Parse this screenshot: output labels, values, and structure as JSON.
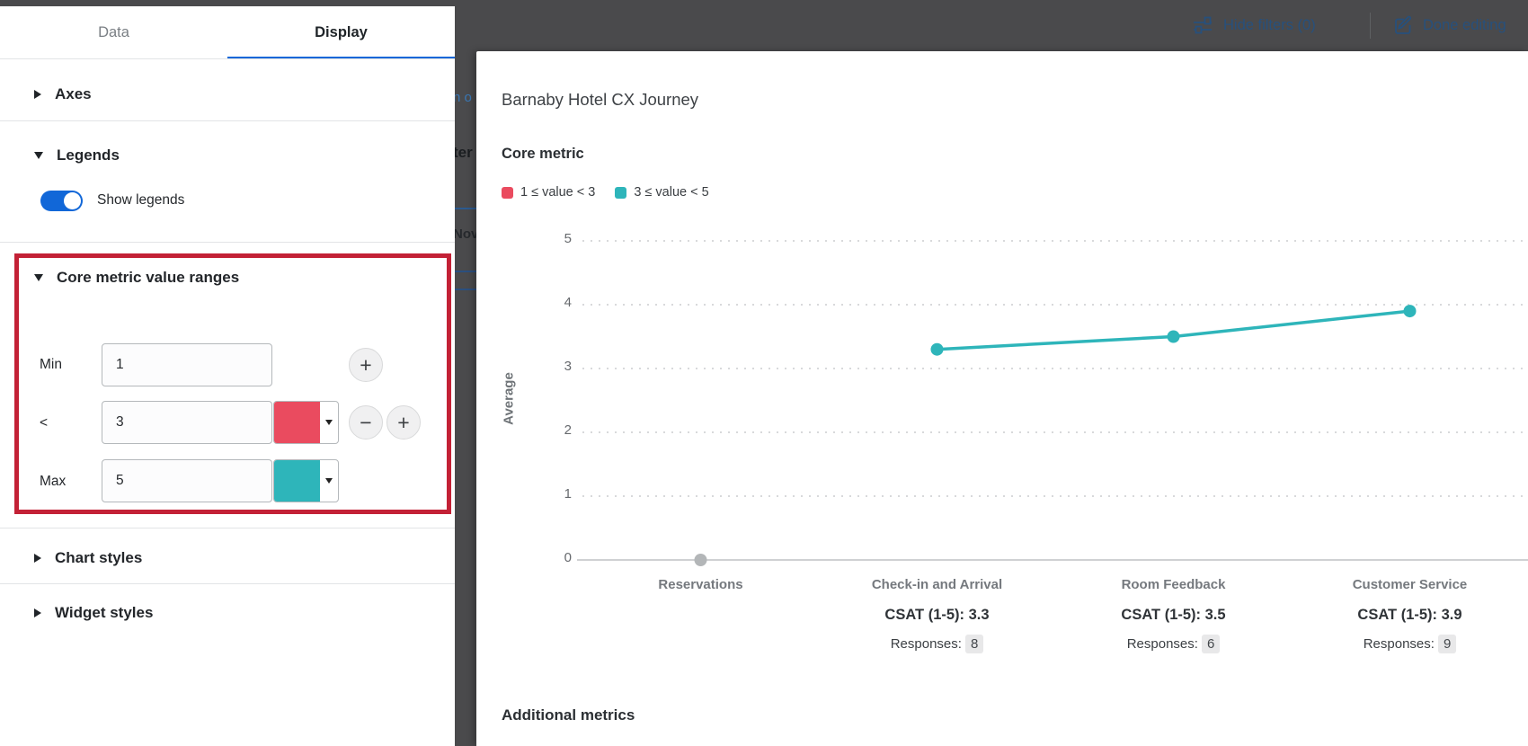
{
  "colors": {
    "accent_blue": "#1167d8",
    "range_red": "#ea4b5f",
    "range_teal": "#2eb5ba",
    "highlight_border": "#c32136",
    "overlay_dark": "#4a4a4c",
    "toolbar_text": "#27507c"
  },
  "glyphs": {
    "plus": "+",
    "minus": "−"
  },
  "toolbar": {
    "hide_filters_label": "Hide filters (0)",
    "done_editing_label": "Done editing"
  },
  "panel": {
    "tabs": [
      {
        "label": "Data",
        "active": false
      },
      {
        "label": "Display",
        "active": true
      }
    ],
    "axes": {
      "label": "Axes",
      "collapsed": true
    },
    "legends": {
      "label": "Legends",
      "collapsed": false,
      "toggle_label": "Show legends",
      "toggle_on": true
    },
    "core_ranges": {
      "label": "Core metric value ranges",
      "collapsed": false,
      "rows": [
        {
          "label": "Min",
          "value": "1",
          "color": null
        },
        {
          "label": "<",
          "value": "3",
          "color": "#ea4b5f"
        },
        {
          "label": "Max",
          "value": "5",
          "color": "#2eb5ba"
        }
      ]
    },
    "chart_styles": {
      "label": "Chart styles",
      "collapsed": true
    },
    "widget_styles": {
      "label": "Widget styles",
      "collapsed": true
    }
  },
  "occluded_fragments": {
    "fragment_1": "n o",
    "fragment_2": "ter",
    "fragment_3": "Nov"
  },
  "widget": {
    "title": "Barnaby Hotel CX Journey",
    "core_metric_label": "Core metric",
    "legend": [
      {
        "label": "1 ≤ value < 3",
        "color": "#ea4b5f"
      },
      {
        "label": "3 ≤ value < 5",
        "color": "#2eb5ba"
      }
    ],
    "additional_metrics_label": "Additional metrics"
  },
  "chart_data": {
    "type": "line",
    "title": "Core metric",
    "xlabel": "",
    "ylabel": "Average",
    "ylim": [
      0,
      5
    ],
    "yticks": [
      0,
      1,
      2,
      3,
      4,
      5
    ],
    "grid": "dotted-horizontal",
    "legend_position": "top-left",
    "categories": [
      "Reservations",
      "Check-in and Arrival",
      "Room Feedback",
      "Customer Service"
    ],
    "series": [
      {
        "name": "CSAT (1-5)",
        "color": "#2eb5ba",
        "values": [
          null,
          3.3,
          3.5,
          3.9
        ]
      }
    ],
    "responses": [
      null,
      8,
      6,
      9
    ],
    "csat_prefix": "CSAT (1-5):",
    "responses_prefix": "Responses:",
    "null_point_color": "#b3b6b8"
  }
}
